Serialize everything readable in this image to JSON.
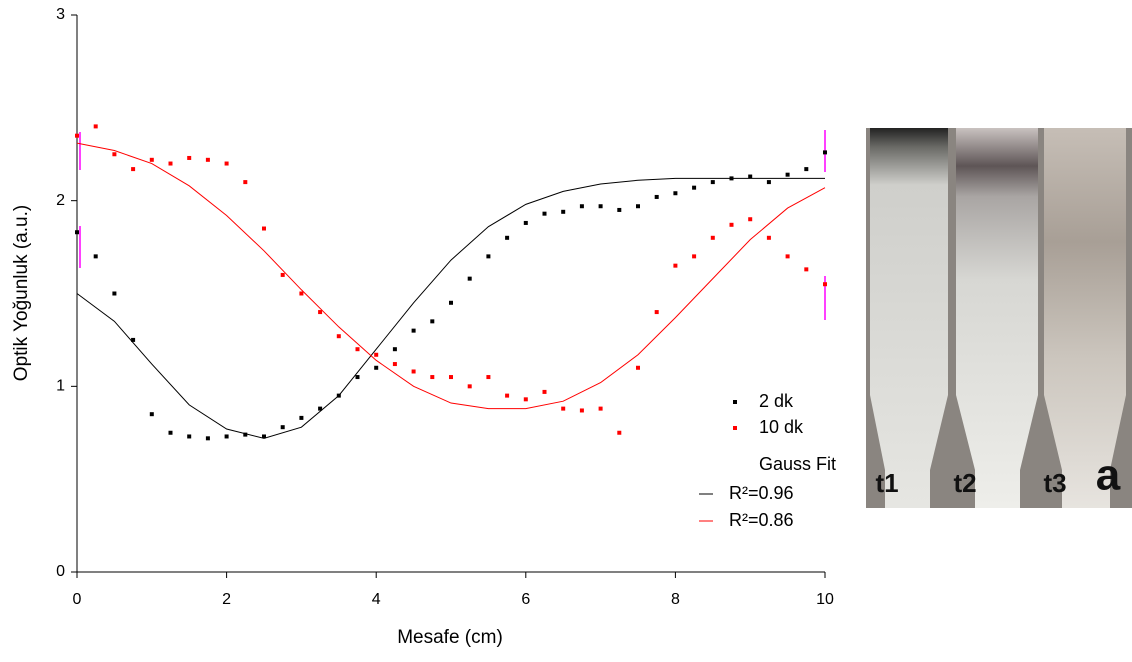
{
  "chart_data": {
    "type": "scatter",
    "x_label": "Mesafe (cm)",
    "y_label": "Optik Yoğunluk (a.u.)",
    "xlim": [
      0,
      10
    ],
    "ylim": [
      0,
      3
    ],
    "xticks": [
      0,
      2,
      4,
      6,
      8,
      10
    ],
    "yticks": [
      0,
      1,
      2,
      3
    ],
    "grid": false,
    "legend": "lower right",
    "fit_title": "Gauss Fit",
    "series": [
      {
        "name": "2 dk",
        "color": "#000000",
        "mode": "markers",
        "x": [
          0,
          0.25,
          0.5,
          0.75,
          1,
          1.25,
          1.5,
          1.75,
          2,
          2.25,
          2.5,
          2.75,
          3,
          3.25,
          3.5,
          3.75,
          4,
          4.25,
          4.5,
          4.75,
          5,
          5.25,
          5.5,
          5.75,
          6,
          6.25,
          6.5,
          6.75,
          7,
          7.25,
          7.5,
          7.75,
          8,
          8.25,
          8.5,
          8.75,
          9,
          9.25,
          9.5,
          9.75,
          10
        ],
        "values": [
          1.83,
          1.7,
          1.5,
          1.25,
          0.85,
          0.75,
          0.73,
          0.72,
          0.73,
          0.74,
          0.73,
          0.78,
          0.83,
          0.88,
          0.95,
          1.05,
          1.1,
          1.2,
          1.3,
          1.35,
          1.45,
          1.58,
          1.7,
          1.8,
          1.88,
          1.93,
          1.94,
          1.97,
          1.97,
          1.95,
          1.97,
          2.02,
          2.04,
          2.07,
          2.1,
          2.12,
          2.13,
          2.1,
          2.14,
          2.17,
          2.26
        ]
      },
      {
        "name": "10 dk",
        "color": "#ff0000",
        "mode": "markers",
        "x": [
          0,
          0.25,
          0.5,
          0.75,
          1,
          1.25,
          1.5,
          1.75,
          2,
          2.25,
          2.5,
          2.75,
          3,
          3.25,
          3.5,
          3.75,
          4,
          4.25,
          4.5,
          4.75,
          5,
          5.25,
          5.5,
          5.75,
          6,
          6.25,
          6.5,
          6.75,
          7,
          7.25,
          7.5,
          7.75,
          8,
          8.25,
          8.5,
          8.75,
          9,
          9.25,
          9.5,
          9.75,
          10
        ],
        "values": [
          2.35,
          2.4,
          2.25,
          2.17,
          2.22,
          2.2,
          2.23,
          2.22,
          2.2,
          2.1,
          1.85,
          1.6,
          1.5,
          1.4,
          1.27,
          1.2,
          1.17,
          1.12,
          1.08,
          1.05,
          1.05,
          1.0,
          1.05,
          0.95,
          0.93,
          0.97,
          0.88,
          0.87,
          0.88,
          0.75,
          1.1,
          1.4,
          1.65,
          1.7,
          1.8,
          1.87,
          1.9,
          1.8,
          1.7,
          1.63,
          1.55
        ]
      },
      {
        "name": "R²=0.96",
        "color": "#000000",
        "mode": "line",
        "x": [
          0,
          0.5,
          1,
          1.5,
          2,
          2.5,
          3,
          3.5,
          4,
          4.5,
          5,
          5.5,
          6,
          6.5,
          7,
          7.5,
          8,
          8.5,
          9,
          9.5,
          10
        ],
        "values": [
          1.5,
          1.35,
          1.12,
          0.9,
          0.77,
          0.72,
          0.78,
          0.95,
          1.2,
          1.45,
          1.68,
          1.86,
          1.98,
          2.05,
          2.09,
          2.11,
          2.12,
          2.12,
          2.12,
          2.12,
          2.12
        ]
      },
      {
        "name": "R²=0.86",
        "color": "#ff0000",
        "mode": "line",
        "x": [
          0,
          0.5,
          1,
          1.5,
          2,
          2.5,
          3,
          3.5,
          4,
          4.5,
          5,
          5.5,
          6,
          6.5,
          7,
          7.5,
          8,
          8.5,
          9,
          9.5,
          10
        ],
        "values": [
          2.31,
          2.27,
          2.2,
          2.08,
          1.92,
          1.73,
          1.52,
          1.32,
          1.14,
          1.0,
          0.91,
          0.88,
          0.88,
          0.92,
          1.02,
          1.17,
          1.37,
          1.58,
          1.79,
          1.96,
          2.07
        ]
      }
    ]
  },
  "photo": {
    "labels": [
      "t1",
      "t2",
      "t3",
      "a"
    ]
  }
}
